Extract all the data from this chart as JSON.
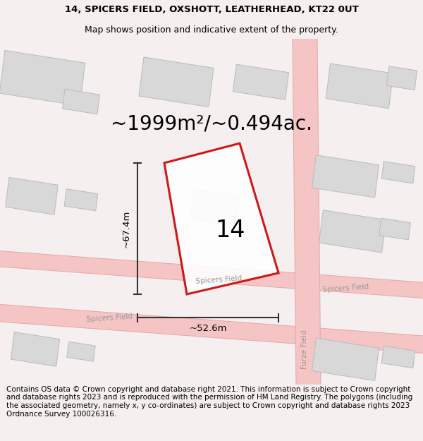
{
  "title_line1": "14, SPICERS FIELD, OXSHOTT, LEATHERHEAD, KT22 0UT",
  "title_line2": "Map shows position and indicative extent of the property.",
  "area_label": "~1999m²/~0.494ac.",
  "plot_number": "14",
  "dim_height": "~67.4m",
  "dim_width": "~52.6m",
  "footer_text": "Contains OS data © Crown copyright and database right 2021. This information is subject to Crown copyright and database rights 2023 and is reproduced with the permission of HM Land Registry. The polygons (including the associated geometry, namely x, y co-ordinates) are subject to Crown copyright and database rights 2023 Ordnance Survey 100026316.",
  "bg_color": "#f5f0ef",
  "map_bg": "#f8f5f4",
  "road_color": "#f5c5c5",
  "building_color": "#d8d8d8",
  "road_outline_color": "#e8aaaa",
  "plot_outline_color": "#cc0000",
  "plot_fill_color": "#ffffff",
  "dim_line_color": "#333333",
  "street_label_color": "#999999",
  "title_fontsize": 9.5,
  "subtitle_fontsize": 9,
  "area_fontsize": 20,
  "plot_number_fontsize": 24,
  "dim_fontsize": 9.5,
  "footer_fontsize": 7.5
}
